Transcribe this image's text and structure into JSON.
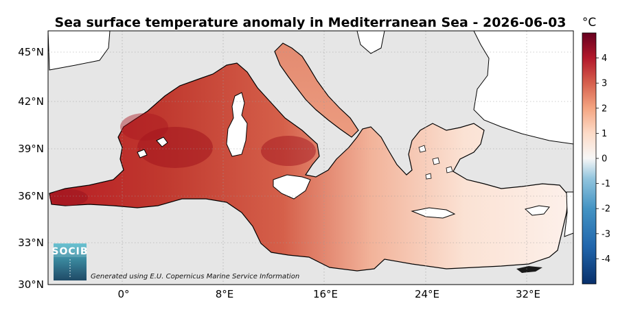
{
  "title": "Sea surface temperature anomaly in Mediterranean Sea - 2026-06-03",
  "colorbar": {
    "unit": "°C",
    "min": -5,
    "max": 5,
    "ticks": [
      4,
      3,
      2,
      1,
      0,
      -1,
      -2,
      -3,
      -4
    ],
    "tick_labels": [
      "4",
      "3",
      "2",
      "1",
      "0",
      "-1",
      "-2",
      "-3",
      "-4"
    ],
    "colors": [
      "#08306b",
      "#2166ac",
      "#4393c3",
      "#92c5de",
      "#f7f7f7",
      "#fddbc7",
      "#f4a582",
      "#d6604d",
      "#b2182b",
      "#67001f"
    ]
  },
  "lat_ticks": [
    {
      "value": 45,
      "label": "45°N"
    },
    {
      "value": 42,
      "label": "42°N"
    },
    {
      "value": 39,
      "label": "39°N"
    },
    {
      "value": 36,
      "label": "36°N"
    },
    {
      "value": 33,
      "label": "33°N"
    },
    {
      "value": 30,
      "label": "30°N"
    }
  ],
  "lon_ticks": [
    {
      "value": 0,
      "label": "0°"
    },
    {
      "value": 8,
      "label": "8°E"
    },
    {
      "value": 16,
      "label": "16°E"
    },
    {
      "value": 24,
      "label": "24°E"
    },
    {
      "value": 32,
      "label": "32°E"
    }
  ],
  "extent": {
    "lon_min": -6,
    "lon_max": 36.5,
    "lat_min": 30,
    "lat_max": 46
  },
  "logo": {
    "text": "SOCIB"
  },
  "credit": "Generated using E.U. Copernicus Marine Service Information",
  "colors": {
    "land": "#e6e6e6",
    "sea_east": "#fbe3d6",
    "sea_mid": "#ec9478",
    "sea_west": "#c5372c",
    "coast": "#000000"
  }
}
